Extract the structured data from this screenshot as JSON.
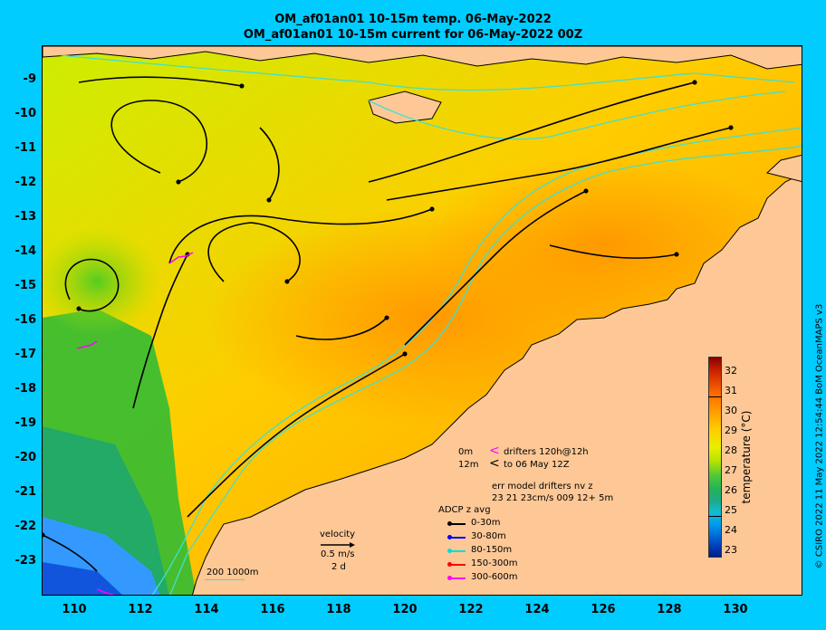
{
  "title_line1": "OM_af01an01 10-15m temp. 06-May-2022",
  "title_line2": "OM_af01an01 10-15m current for 06-May-2022 00Z",
  "y_ticks": [
    "-9",
    "-10",
    "-11",
    "-12",
    "-13",
    "-14",
    "-15",
    "-16",
    "-17",
    "-18",
    "-19",
    "-20",
    "-21",
    "-22",
    "-23"
  ],
  "x_ticks": [
    "110",
    "112",
    "114",
    "116",
    "118",
    "120",
    "122",
    "124",
    "126",
    "128",
    "130"
  ],
  "colorbar": {
    "ticks": [
      "32",
      "31",
      "30",
      "29",
      "28",
      "27",
      "26",
      "25",
      "24",
      "23"
    ],
    "title": "temperature (°C)"
  },
  "credit": "© CSIRO 2022  11 May 2022 12:54:44 BoM OceanMAPS v3",
  "drifters_legend": {
    "row1_depth": "0m",
    "row1_text": "drifters 120h@12h",
    "row2_depth": "12m",
    "row2_text": "to 06 May 12Z",
    "err_line1": "err model drifters nv z",
    "err_line2": "23 21 23cm/s 009 12+ 5m"
  },
  "adcp": {
    "title": "ADCP z avg",
    "items": [
      {
        "label": "0-30m",
        "color": "#000000"
      },
      {
        "label": "30-80m",
        "color": "#0000ff"
      },
      {
        "label": "80-150m",
        "color": "#00dddd"
      },
      {
        "label": "150-300m",
        "color": "#ff0000"
      },
      {
        "label": "300-600m",
        "color": "#ff00ff"
      }
    ]
  },
  "velocity": {
    "title": "velocity",
    "speed": "0.5 m/s",
    "duration": "2 d"
  },
  "isobaths": "200  1000m",
  "colors": {
    "background": "#00ccff",
    "land": "#fdc896",
    "isobath": "#40e0d0",
    "drifter": "#ff00ff"
  }
}
